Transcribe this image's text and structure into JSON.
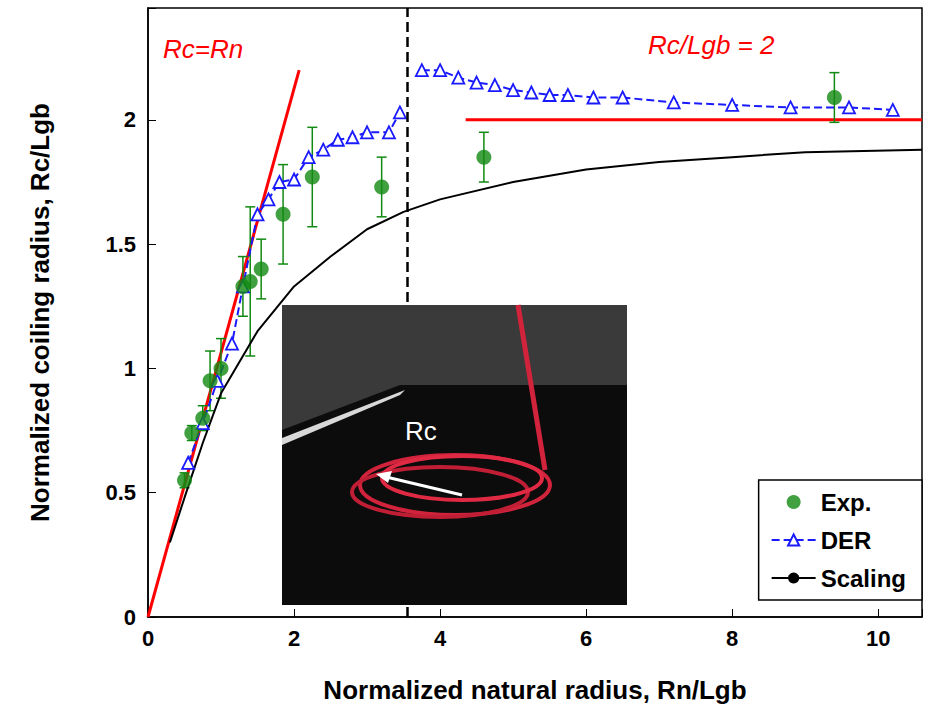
{
  "chart_data": {
    "type": "scatter",
    "x_label": "Normalized natural radius, Rn/Lgb",
    "y_label": "Normalized coiling radius, Rc/Lgb",
    "xlim": [
      0,
      10.6
    ],
    "xticks": [
      0,
      2,
      4,
      6,
      8,
      10
    ],
    "ylim": [
      0,
      2.45
    ],
    "yticks": [
      0,
      0.5,
      1,
      1.5,
      2
    ],
    "grid": false,
    "legend": "lower right",
    "series": [
      {
        "name": "Exp.",
        "type": "scatter",
        "color": "#118a11",
        "marker": "circle",
        "x": [
          0.5,
          0.6,
          0.75,
          0.85,
          1.0,
          1.3,
          1.4,
          1.55,
          1.85,
          2.25,
          3.2,
          4.6,
          9.4
        ],
        "values": [
          0.55,
          0.74,
          0.8,
          0.95,
          1.0,
          1.33,
          1.35,
          1.4,
          1.62,
          1.77,
          1.73,
          1.85,
          2.09
        ],
        "errors": [
          0.03,
          0.03,
          0.05,
          0.12,
          0.12,
          0.12,
          0.3,
          0.12,
          0.2,
          0.2,
          0.12,
          0.1,
          0.1
        ]
      },
      {
        "name": "DER",
        "type": "line",
        "color": "#1a1aff",
        "marker": "triangle",
        "line_style": "dashed",
        "x": [
          0.55,
          0.75,
          0.95,
          1.15,
          1.3,
          1.5,
          1.65,
          1.8,
          2.0,
          2.2,
          2.4,
          2.6,
          2.8,
          3.0,
          3.3,
          3.45,
          3.6,
          3.75,
          4.0,
          4.25,
          4.5,
          4.75,
          5.0,
          5.25,
          5.5,
          5.75,
          6.1,
          6.5,
          7.2,
          8.0,
          8.8,
          9.6,
          10.2
        ],
        "values": [
          0.62,
          0.78,
          0.95,
          1.1,
          1.33,
          1.62,
          1.68,
          1.75,
          1.76,
          1.85,
          1.88,
          1.92,
          1.93,
          1.95,
          1.95,
          2.03,
          null,
          2.2,
          2.2,
          2.17,
          2.15,
          2.14,
          2.12,
          2.11,
          2.1,
          2.1,
          2.09,
          2.09,
          2.07,
          2.06,
          2.05,
          2.05,
          2.04
        ]
      },
      {
        "name": "Scaling",
        "type": "line",
        "color": "#000000",
        "marker": "none",
        "line_style": "solid",
        "x": [
          0.3,
          0.5,
          0.75,
          1.0,
          1.5,
          2.0,
          2.5,
          3.0,
          3.5,
          4.0,
          5.0,
          6.0,
          7.0,
          8.0,
          9.0,
          10.6
        ],
        "values": [
          0.3,
          0.48,
          0.7,
          0.9,
          1.15,
          1.33,
          1.45,
          1.56,
          1.63,
          1.68,
          1.75,
          1.8,
          1.83,
          1.85,
          1.87,
          1.88
        ]
      }
    ],
    "reference_lines": [
      {
        "label": "Rc=Rn",
        "color": "#ff0000",
        "x": [
          0,
          2.07
        ],
        "y": [
          0,
          2.2
        ]
      },
      {
        "label": "Rc/Lgb = 2",
        "color": "#ff0000",
        "x": [
          4.35,
          10.6
        ],
        "y": [
          2,
          2
        ]
      }
    ],
    "vline": {
      "x": 3.55,
      "color": "#000000",
      "line_style": "dashed"
    },
    "inset": {
      "label": "Rc"
    }
  }
}
